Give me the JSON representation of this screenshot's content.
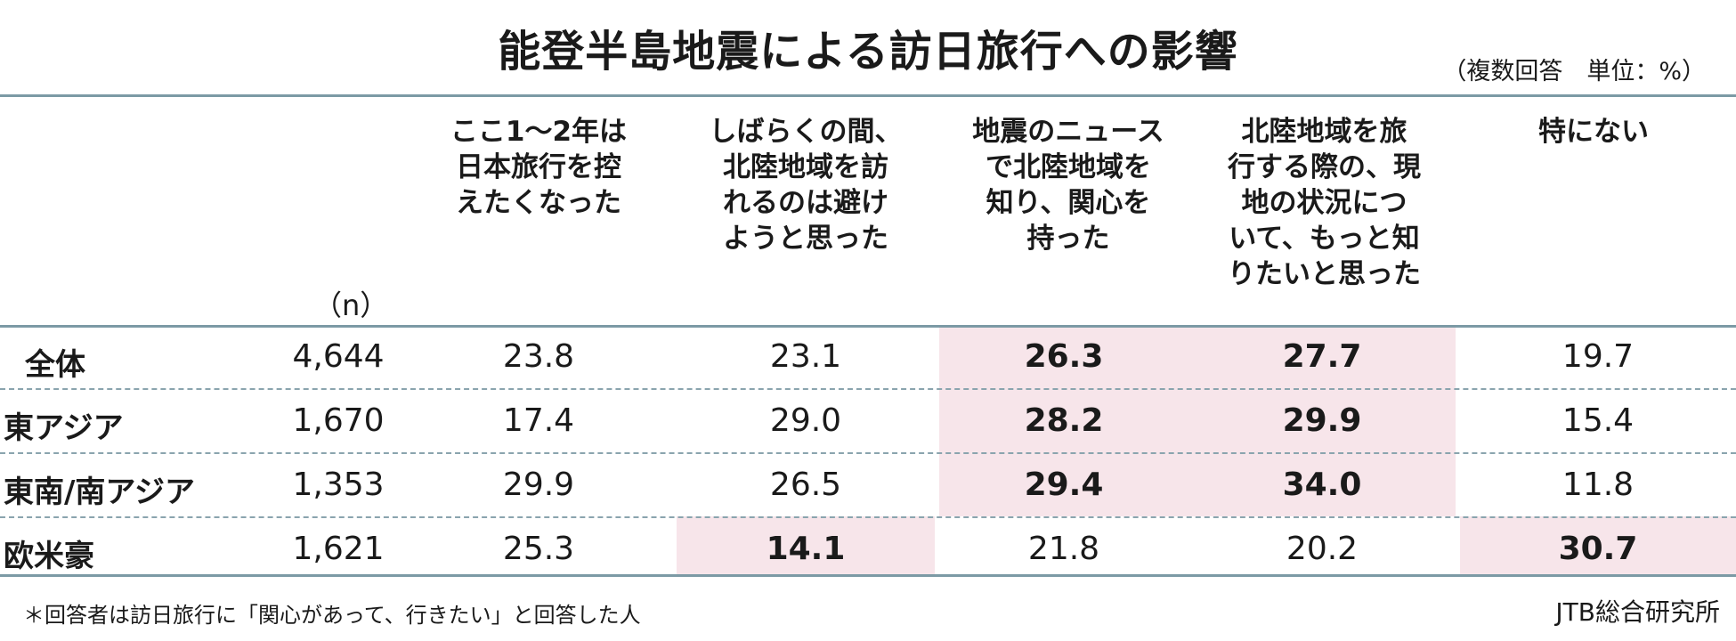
{
  "title": "能登半島地震による訪日旅行への影響",
  "units": "（複数回答　単位：%）",
  "n_label": "（n）",
  "columns": [
    {
      "label": "ここ1～2年は\n日本旅行を控\nえたくなった"
    },
    {
      "label": "しばらくの間、\n北陸地域を訪\nれるのは避け\nようと思った"
    },
    {
      "label": "地震のニュース\nで北陸地域を\n知り、関心を\n持った"
    },
    {
      "label": "北陸地域を旅\n行する際の、現\n地の状況につ\nいて、もっと知\nりたいと思った"
    },
    {
      "label": "特にない"
    }
  ],
  "rows": [
    {
      "name": "全体",
      "n": "4,644",
      "values": [
        "23.8",
        "23.1",
        "26.3",
        "27.7",
        "19.7"
      ],
      "highlight": [
        false,
        false,
        true,
        true,
        false
      ]
    },
    {
      "name": "東アジア",
      "n": "1,670",
      "values": [
        "17.4",
        "29.0",
        "28.2",
        "29.9",
        "15.4"
      ],
      "highlight": [
        false,
        false,
        true,
        true,
        false
      ]
    },
    {
      "name": "東南/南アジア",
      "n": "1,353",
      "values": [
        "29.9",
        "26.5",
        "29.4",
        "34.0",
        "11.8"
      ],
      "highlight": [
        false,
        false,
        true,
        true,
        false
      ]
    },
    {
      "name": "欧米豪",
      "n": "1,621",
      "values": [
        "25.3",
        "14.1",
        "21.8",
        "20.2",
        "30.7"
      ],
      "highlight": [
        false,
        true,
        false,
        false,
        true
      ]
    }
  ],
  "footnote": "＊回答者は訪日旅行に「関心があって、行きたい」と回答した人",
  "source": "JTB総合研究所",
  "colors": {
    "rule": "#7c9aa5",
    "highlight": "#f7e5ea"
  }
}
